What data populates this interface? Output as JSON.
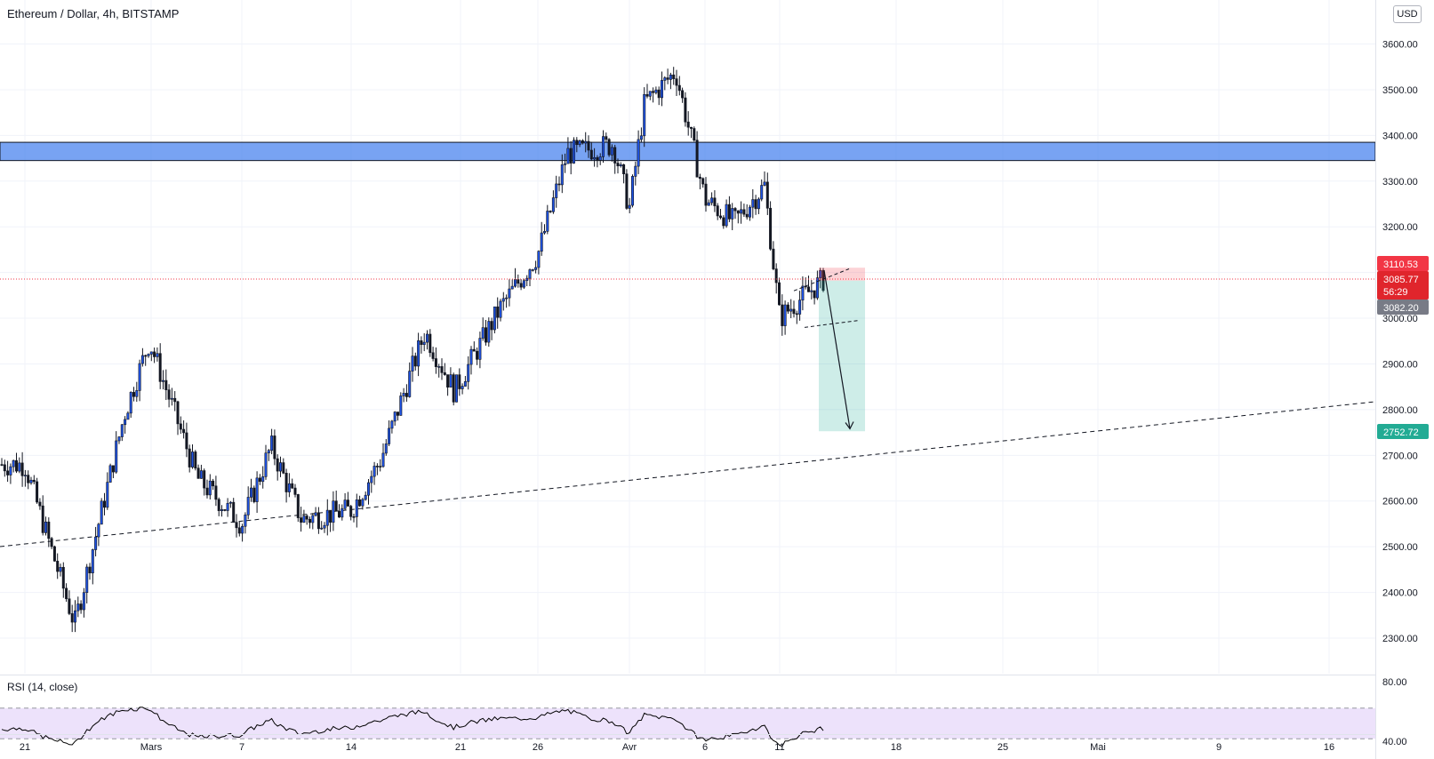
{
  "header": {
    "title": "Ethereum / Dollar, 4h, BITSTAMP",
    "currency": "USD"
  },
  "rsi": {
    "label": "RSI (14, close)",
    "upper": "80.00",
    "lower": "40.00"
  },
  "price_tags": {
    "sl": "3110.53",
    "last": "3085.77",
    "countdown": "56:29",
    "entry": "3082.20",
    "tp": "2752.72"
  },
  "colors": {
    "bull": "#1e53e5",
    "bear": "#131722",
    "zone": "#4b84ef",
    "stop": "#f23645",
    "target": "#22ab94",
    "rsi_band": "#ede2fb",
    "rsi_line": "#000000"
  },
  "chart_data": {
    "type": "candlestick",
    "title": "Ethereum / Dollar, 4h, BITSTAMP",
    "y_ticks": [
      2300,
      2400,
      2500,
      2600,
      2700,
      2800,
      2900,
      3000,
      3100,
      3200,
      3300,
      3400,
      3500,
      3600
    ],
    "ylim": [
      2225,
      3690
    ],
    "x_ticks": [
      "21",
      "Mars",
      "7",
      "14",
      "21",
      "26",
      "Avr",
      "6",
      "11",
      "18",
      "25",
      "Mai",
      "9",
      "16"
    ],
    "price_path": [
      [
        "21 Feb",
        2680
      ],
      [
        "24 Feb",
        2330
      ],
      [
        "27 Feb",
        2790
      ],
      [
        "1 Mar",
        2950
      ],
      [
        "4 Mar",
        2650
      ],
      [
        "7 Mar",
        2550
      ],
      [
        "9 Mar",
        2720
      ],
      [
        "11 Mar",
        2560
      ],
      [
        "14 Mar",
        2580
      ],
      [
        "16 Mar",
        2690
      ],
      [
        "19 Mar",
        2970
      ],
      [
        "22 Mar",
        2840
      ],
      [
        "24 Mar",
        3020
      ],
      [
        "27 Mar",
        3140
      ],
      [
        "29 Mar",
        3360
      ],
      [
        "1 Apr",
        3380
      ],
      [
        "2 Apr",
        3240
      ],
      [
        "3 Apr",
        3470
      ],
      [
        "5 Apr",
        3540
      ],
      [
        "6 Apr",
        3260
      ],
      [
        "8 Apr",
        3210
      ],
      [
        "10 Apr",
        3290
      ],
      [
        "11 Apr",
        3000
      ],
      [
        "12 Apr",
        3030
      ],
      [
        "13 Apr",
        3086
      ]
    ],
    "resistance_zone": [
      3345,
      3385
    ],
    "trendline_start": [
      "21 Feb",
      2505
    ],
    "trendline_end": [
      "13 Apr",
      2705
    ],
    "position": {
      "type": "short",
      "entry": 3082.2,
      "stop": 3110.53,
      "target": 2752.72
    },
    "rsi_range": [
      40,
      80
    ]
  }
}
